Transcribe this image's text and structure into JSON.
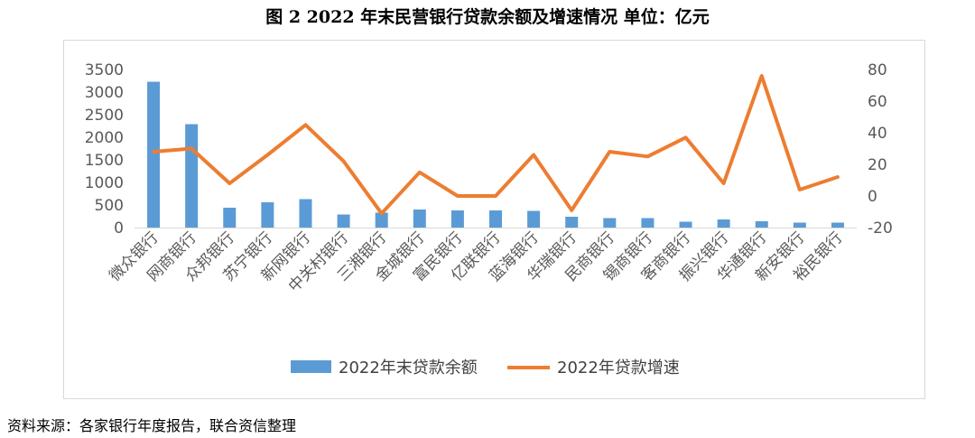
{
  "title": "图 2   2022 年末民营银行贷款余额及增速情况    单位：亿元",
  "source": "资料来源：各家银行年度报告，联合资信整理",
  "chart_data": {
    "type": "bar",
    "categories": [
      "微众银行",
      "网商银行",
      "众邦银行",
      "苏宁银行",
      "新网银行",
      "中关村银行",
      "三湘银行",
      "金城银行",
      "富民银行",
      "亿联银行",
      "蓝海银行",
      "华瑞银行",
      "民商银行",
      "锡商银行",
      "客商银行",
      "振兴银行",
      "华通银行",
      "新安银行",
      "裕民银行"
    ],
    "series": [
      {
        "name": "2022年末贷款余额",
        "type": "bar",
        "axis": "left",
        "color": "#5b9bd5",
        "values": [
          3230,
          2290,
          440,
          560,
          630,
          290,
          330,
          400,
          380,
          380,
          370,
          240,
          210,
          210,
          130,
          180,
          140,
          110,
          110
        ]
      },
      {
        "name": "2022年贷款增速",
        "type": "line",
        "axis": "right",
        "color": "#ed7d31",
        "values": [
          28,
          30,
          8,
          26,
          45,
          22,
          -11,
          15,
          0,
          0,
          26,
          -9,
          28,
          25,
          37,
          8,
          76,
          4,
          12
        ]
      }
    ],
    "y_left": {
      "min": 0,
      "max": 3500,
      "ticks": [
        "0",
        "500",
        "1000",
        "1500",
        "2000",
        "2500",
        "3000",
        "3500"
      ]
    },
    "y_right": {
      "min": -20,
      "max": 80,
      "ticks": [
        "-20",
        "0",
        "20",
        "40",
        "60",
        "80"
      ]
    },
    "grid": false,
    "legend": "bottom"
  }
}
